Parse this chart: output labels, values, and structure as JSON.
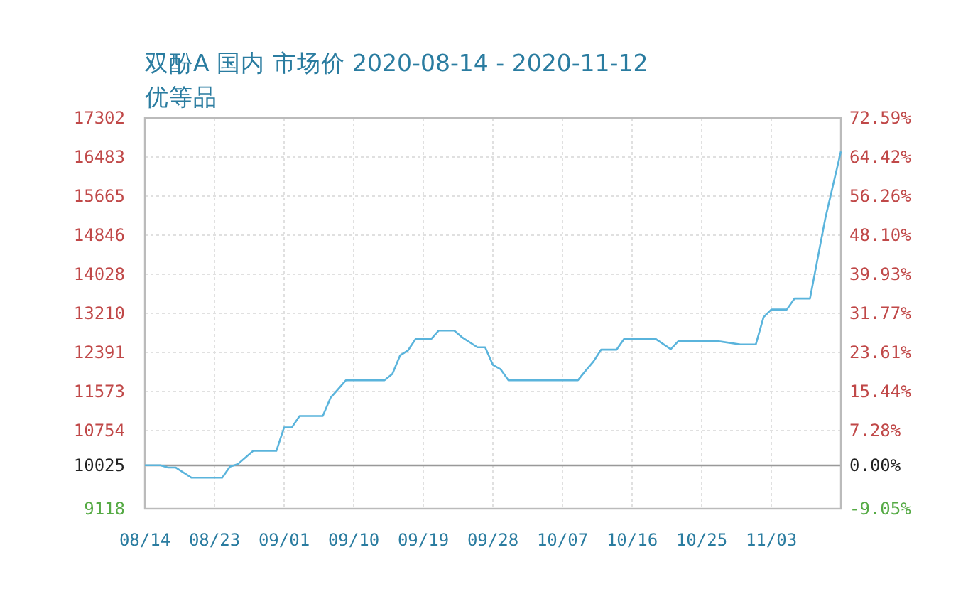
{
  "chart_data": {
    "type": "line",
    "title": "双酚A 国内 市场价 2020-08-14 - 2020-11-12",
    "subtitle": "优等品",
    "x": [
      "2020-08-14",
      "2020-08-16",
      "2020-08-17",
      "2020-08-18",
      "2020-08-20",
      "2020-08-24",
      "2020-08-25",
      "2020-08-26",
      "2020-08-28",
      "2020-08-31",
      "2020-09-01",
      "2020-09-02",
      "2020-09-03",
      "2020-09-06",
      "2020-09-07",
      "2020-09-09",
      "2020-09-14",
      "2020-09-15",
      "2020-09-16",
      "2020-09-17",
      "2020-09-18",
      "2020-09-20",
      "2020-09-21",
      "2020-09-23",
      "2020-09-24",
      "2020-09-26",
      "2020-09-27",
      "2020-09-28",
      "2020-09-29",
      "2020-09-30",
      "2020-10-09",
      "2020-10-10",
      "2020-10-11",
      "2020-10-12",
      "2020-10-14",
      "2020-10-15",
      "2020-10-19",
      "2020-10-21",
      "2020-10-22",
      "2020-10-27",
      "2020-10-30",
      "2020-11-01",
      "2020-11-02",
      "2020-11-03",
      "2020-11-05",
      "2020-11-06",
      "2020-11-08",
      "2020-11-10",
      "2020-11-12"
    ],
    "series": [
      {
        "color": "#5ab4dc",
        "values": [
          10030,
          10030,
          9980,
          9980,
          9770,
          9770,
          10000,
          10050,
          10330,
          10330,
          10820,
          10820,
          11060,
          11060,
          11440,
          11810,
          11810,
          11940,
          12330,
          12430,
          12670,
          12670,
          12850,
          12850,
          12710,
          12500,
          12500,
          12130,
          12040,
          11810,
          11810,
          12010,
          12200,
          12450,
          12450,
          12680,
          12680,
          12460,
          12630,
          12630,
          12560,
          12560,
          13130,
          13290,
          13290,
          13520,
          13520,
          15210,
          16600
        ]
      }
    ],
    "xlim": [
      "2020-08-14",
      "2020-11-12"
    ],
    "xticks": [
      {
        "value": "2020-08-14",
        "label": "08/14"
      },
      {
        "value": "2020-08-23",
        "label": "08/23"
      },
      {
        "value": "2020-09-01",
        "label": "09/01"
      },
      {
        "value": "2020-09-10",
        "label": "09/10"
      },
      {
        "value": "2020-09-19",
        "label": "09/19"
      },
      {
        "value": "2020-09-28",
        "label": "09/28"
      },
      {
        "value": "2020-10-07",
        "label": "10/07"
      },
      {
        "value": "2020-10-16",
        "label": "10/16"
      },
      {
        "value": "2020-10-25",
        "label": "10/25"
      },
      {
        "value": "2020-11-03",
        "label": "11/03"
      }
    ],
    "ylim": [
      9118,
      17302
    ],
    "yticks": [
      9118,
      10025,
      10754,
      11573,
      12391,
      13210,
      14028,
      14846,
      15665,
      16483,
      17302
    ],
    "y2lim": [
      -9.05,
      72.59
    ],
    "y2ticks": [
      {
        "value": -9.05,
        "label": "-9.05%"
      },
      {
        "value": 0,
        "label": "0.00%"
      },
      {
        "value": 7.28,
        "label": "7.28%"
      },
      {
        "value": 15.44,
        "label": "15.44%"
      },
      {
        "value": 23.61,
        "label": "23.61%"
      },
      {
        "value": 31.77,
        "label": "31.77%"
      },
      {
        "value": 39.93,
        "label": "39.93%"
      },
      {
        "value": 48.1,
        "label": "48.10%"
      },
      {
        "value": 56.26,
        "label": "56.26%"
      },
      {
        "value": 64.42,
        "label": "64.42%"
      },
      {
        "value": 72.59,
        "label": "72.59%"
      }
    ],
    "ref_lines": [
      {
        "axis": "y",
        "value": 10025,
        "color": "#999999"
      }
    ],
    "grid": true,
    "marker": "none",
    "line_style": "solid"
  }
}
